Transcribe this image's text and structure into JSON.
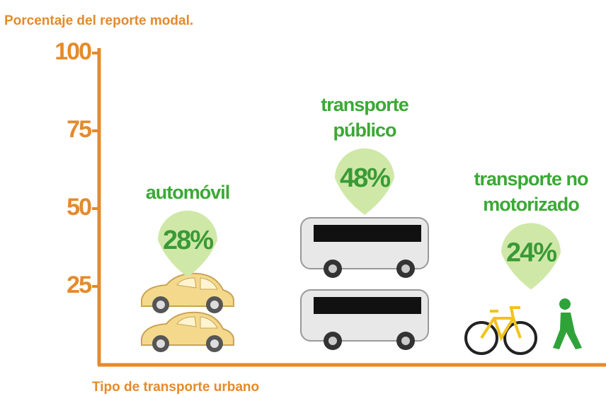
{
  "chart_data": {
    "type": "pictograph",
    "y_label": "Porcentaje del reporte modal.",
    "x_label": "Tipo de transporte urbano",
    "categories": [
      "automóvil",
      "transporte público",
      "transporte no motorizado"
    ],
    "values": [
      28,
      48,
      24
    ],
    "value_labels": [
      "28%",
      "48%",
      "24%"
    ],
    "ylim": [
      0,
      100
    ],
    "yticks": [
      25,
      50,
      75,
      100
    ],
    "axis_color": "#e58a2b",
    "label_color": "#3aa935",
    "balloon_color": "#cfe8a8",
    "value_color": "#3a9a36"
  }
}
